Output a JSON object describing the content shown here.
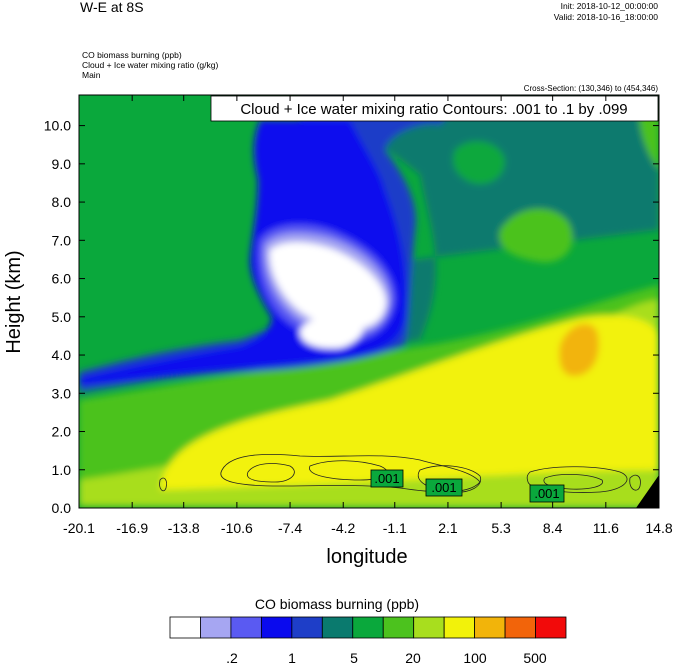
{
  "header": {
    "title": "W-E at 8S",
    "init": "Init: 2018-10-12_00:00:00",
    "valid": "Valid: 2018-10-16_18:00:00",
    "fields": [
      "CO biomass burning   (ppb)",
      "Cloud + Ice water mixing ratio   (g/kg)",
      "Main"
    ],
    "cross_section": "Cross-Section: (130,346) to (454,346)"
  },
  "chart_data": {
    "type": "heatmap",
    "contour_label": "Cloud + Ice water mixing ratio Contours: .001 to .1 by .099",
    "xlabel": "longitude",
    "ylabel": "Height (km)",
    "x_ticks": [
      "-20.1",
      "-16.9",
      "-13.8",
      "-10.6",
      "-7.4",
      "-4.2",
      "-1.1",
      "2.1",
      "5.3",
      "8.4",
      "11.6",
      "14.8"
    ],
    "y_ticks": [
      "0.0",
      "1.0",
      "2.0",
      "3.0",
      "4.0",
      "5.0",
      "6.0",
      "7.0",
      "8.0",
      "9.0",
      "10.0"
    ],
    "xlim": [
      -20.1,
      14.8
    ],
    "ylim": [
      0,
      10.8
    ],
    "contour_values": [
      ".001",
      ".001",
      ".001"
    ],
    "colorbar": {
      "title": "CO biomass burning  (ppb)",
      "colors": [
        "#ffffff",
        "#a6a6f2",
        "#5a5af2",
        "#0a0aee",
        "#1e3ec8",
        "#0a7a6e",
        "#0aa83c",
        "#4cc21e",
        "#a8de1e",
        "#f2f20a",
        "#f2b40a",
        "#f2640a",
        "#f20a0a"
      ],
      "labels": [
        ".2",
        "1",
        "5",
        "20",
        "100",
        "500"
      ]
    }
  }
}
